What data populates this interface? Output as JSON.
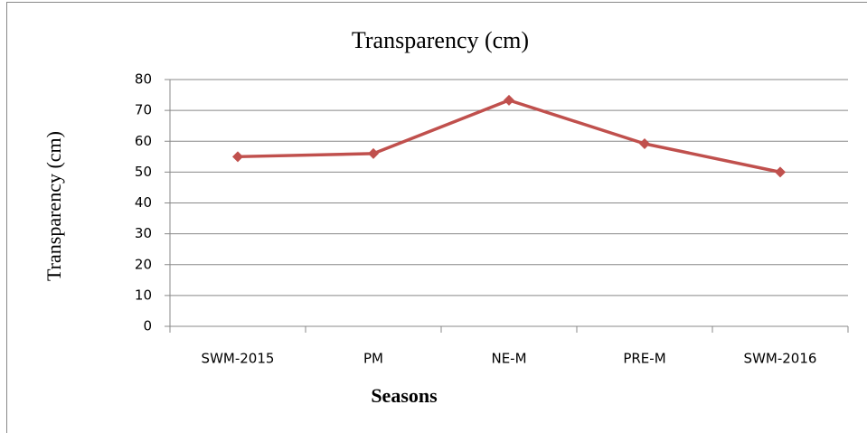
{
  "chart_data": {
    "type": "line",
    "title": "Transparency (cm)",
    "x_label": "Seasons",
    "y_label": "Transparency (cm)",
    "categories": [
      "SWM-2015",
      "PM",
      "NE-M",
      "PRE-M",
      "SWM-2016"
    ],
    "series": [
      {
        "name": "Transparency (cm)",
        "color": "#c0504d",
        "values": [
          55,
          56,
          73.3,
          59.2,
          50
        ]
      }
    ],
    "ylim": [
      0,
      80
    ],
    "yticks": [
      0,
      10,
      20,
      30,
      40,
      50,
      60,
      70,
      80
    ],
    "grid": true
  }
}
